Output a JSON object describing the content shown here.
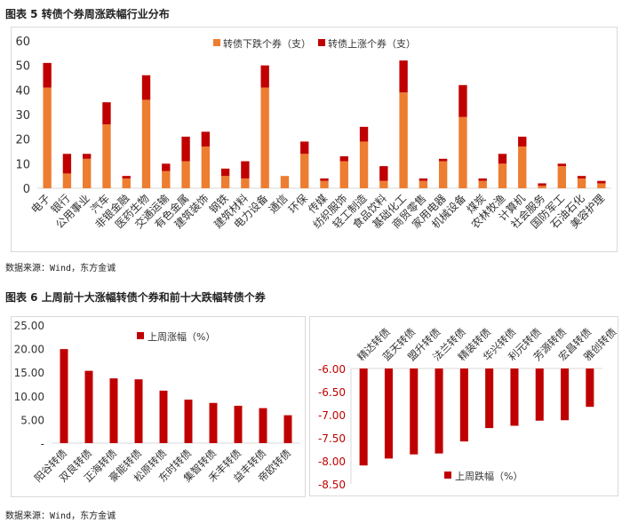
{
  "figure5": {
    "title": "图表 5  转债个券周涨跌幅行业分布",
    "source": "数据来源：Wind，东方金诚"
  },
  "figure6": {
    "title": "图表 6  上周前十大涨幅转债个券和前十大跌幅转债个券",
    "source": "数据来源：Wind，东方金诚"
  },
  "chart_data": [
    {
      "type": "bar",
      "stacked": true,
      "categories": [
        "电子",
        "银行",
        "公用事业",
        "汽车",
        "非银金融",
        "医药生物",
        "交通运输",
        "有色金属",
        "建筑装饰",
        "钢铁",
        "建筑材料",
        "电力设备",
        "通信",
        "环保",
        "传媒",
        "纺织服饰",
        "轻工制造",
        "食品饮料",
        "基础化工",
        "商贸零售",
        "家用电器",
        "机械设备",
        "煤炭",
        "农林牧渔",
        "计算机",
        "社会服务",
        "国防军工",
        "石油石化",
        "美容护理"
      ],
      "series": [
        {
          "name": "转债下跌个券（支）",
          "color": "#ED7D31",
          "values": [
            41,
            6,
            12,
            26,
            4,
            36,
            7,
            11,
            17,
            5,
            4,
            41,
            5,
            14,
            3,
            11,
            19,
            3,
            39,
            3,
            11,
            29,
            3,
            10,
            17,
            1,
            9,
            4,
            2
          ]
        },
        {
          "name": "转债上涨个券（支）",
          "color": "#C00000",
          "values": [
            10,
            8,
            2,
            9,
            1,
            10,
            3,
            10,
            6,
            3,
            7,
            9,
            0,
            5,
            1,
            2,
            6,
            6,
            13,
            1,
            1,
            13,
            1,
            4,
            4,
            1,
            1,
            1,
            1
          ]
        }
      ],
      "yticks": [
        "0",
        "10",
        "20",
        "30",
        "40",
        "50",
        "60"
      ],
      "ylim": [
        0,
        60
      ],
      "legend": "top-right",
      "grid": false
    },
    {
      "type": "bar",
      "categories": [
        "阳谷转债",
        "双良转债",
        "正海转债",
        "豪能转债",
        "松原转债",
        "东时转债",
        "集智转债",
        "禾丰转债",
        "益丰转债",
        "帝欧转债"
      ],
      "series": [
        {
          "name": "上周涨幅（%）",
          "color": "#C00000",
          "values": [
            19.9,
            15.3,
            13.7,
            13.5,
            11.1,
            9.2,
            8.5,
            7.9,
            7.4,
            5.9
          ]
        }
      ],
      "yticks": [
        "-",
        "5.00",
        "10.00",
        "15.00",
        "20.00",
        "25.00"
      ],
      "ylim": [
        0,
        25
      ],
      "legend": "top",
      "grid": false
    },
    {
      "type": "bar",
      "categories": [
        "精达转债",
        "蓝天转债",
        "盟升转债",
        "法兰转债",
        "精装转债",
        "华兴转债",
        "利元转债",
        "芳源转债",
        "宏昌转债",
        "雅创转债"
      ],
      "series": [
        {
          "name": "上周跌幅（%）",
          "color": "#C00000",
          "values": [
            -8.1,
            -7.95,
            -7.86,
            -7.84,
            -7.58,
            -7.29,
            -7.24,
            -7.13,
            -7.12,
            -6.83
          ]
        }
      ],
      "yticks": [
        "-6.00",
        "-6.50",
        "-7.00",
        "-7.50",
        "-8.00",
        "-8.50"
      ],
      "ylim": [
        -8.5,
        -6.0
      ],
      "tick_color": "#C00000",
      "legend": "bottom",
      "grid": false
    }
  ]
}
